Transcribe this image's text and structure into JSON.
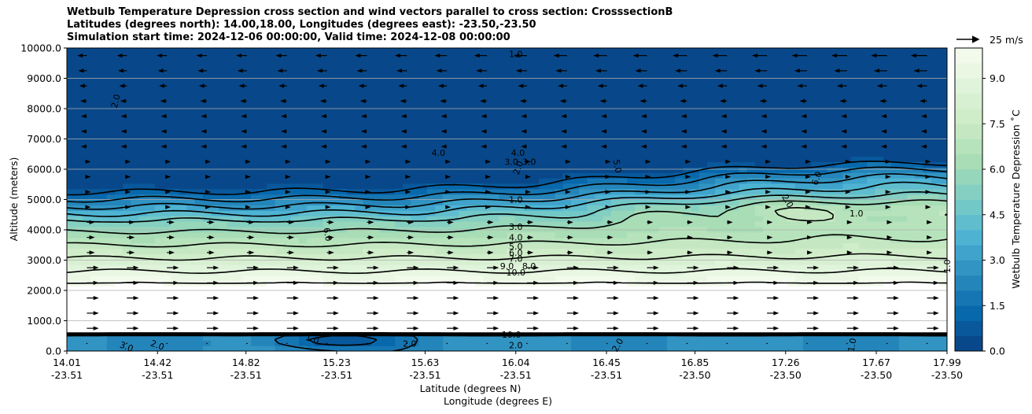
{
  "chart_data": {
    "type": "heatmap",
    "title_lines": [
      "Wetbulb Temperature Depression cross section and wind vectors parallel to cross section: CrosssectionB",
      "Latitudes (degrees north): 14.00,18.00, Longitudes (degrees east): -23.50,-23.50",
      "Simulation start time: 2024-12-06 00:00:00, Valid time: 2024-12-08 00:00:00"
    ],
    "ylabel": "Altitude (meters)",
    "xlabel_lat": "Latitude (degrees N)",
    "xlabel_lon": "Longitude (degrees E)",
    "ylim": [
      0,
      10000
    ],
    "yticks": [
      "0.0",
      "1000.0",
      "2000.0",
      "3000.0",
      "4000.0",
      "5000.0",
      "6000.0",
      "7000.0",
      "8000.0",
      "9000.0",
      "10000.0"
    ],
    "ytick_values": [
      0,
      1000,
      2000,
      3000,
      4000,
      5000,
      6000,
      7000,
      8000,
      9000,
      10000
    ],
    "xlim": [
      14.01,
      17.99
    ],
    "xtick_positions": [
      14.01,
      14.42,
      14.82,
      15.23,
      15.63,
      16.04,
      16.45,
      16.85,
      17.26,
      17.67,
      17.99
    ],
    "xticks_lat": [
      "14.01",
      "14.42",
      "14.82",
      "15.23",
      "15.63",
      "16.04",
      "16.45",
      "16.85",
      "17.26",
      "17.67",
      "17.99"
    ],
    "xticks_lon": [
      "-23.51",
      "-23.51",
      "-23.51",
      "-23.51",
      "-23.51",
      "-23.51",
      "-23.51",
      "-23.50",
      "-23.50",
      "-23.50",
      "-23.50"
    ],
    "grid": "horizontal",
    "colorbar": {
      "label": "Wetbulb Temperature Depression ˚C",
      "range": [
        0,
        10
      ],
      "ticks": [
        "0.0",
        "1.5",
        "3.0",
        "4.5",
        "6.0",
        "7.5",
        "9.0"
      ],
      "tick_values": [
        0,
        1.5,
        3,
        4.5,
        6,
        7.5,
        9
      ],
      "colormap": "GnBu_r",
      "colors": [
        "#084081",
        "#0868ac",
        "#2b8cbe",
        "#4eb3d3",
        "#7bccc4",
        "#a8ddb5",
        "#ccebc5",
        "#e0f3db",
        "#f7fcf0"
      ]
    },
    "wind_reference": {
      "label": "25 m/s",
      "speed": 25
    },
    "contour_labels": [
      {
        "text": "1.0",
        "x": 16.04,
        "y": 9800
      },
      {
        "text": "2.0",
        "x": 14.23,
        "y": 8250,
        "rotate": -75
      },
      {
        "text": "4.0",
        "x": 15.69,
        "y": 6550
      },
      {
        "text": "4.0",
        "x": 16.05,
        "y": 6550
      },
      {
        "text": "3.0",
        "x": 16.02,
        "y": 6250
      },
      {
        "text": "3.0",
        "x": 16.1,
        "y": 6250
      },
      {
        "text": "2.0",
        "x": 16.05,
        "y": 6050,
        "rotate": -70
      },
      {
        "text": "5.0",
        "x": 16.5,
        "y": 6100,
        "rotate": 80
      },
      {
        "text": "6.0",
        "x": 17.4,
        "y": 5700,
        "rotate": -70
      },
      {
        "text": "2.0",
        "x": 17.27,
        "y": 4950,
        "rotate": 60
      },
      {
        "text": "1.0",
        "x": 17.58,
        "y": 4550
      },
      {
        "text": "1.0",
        "x": 16.04,
        "y": 5000
      },
      {
        "text": "6.0",
        "x": 15.19,
        "y": 3850,
        "rotate": 80
      },
      {
        "text": "3.0",
        "x": 16.04,
        "y": 4100
      },
      {
        "text": "4.0",
        "x": 16.04,
        "y": 3750
      },
      {
        "text": "5.0",
        "x": 16.04,
        "y": 3450
      },
      {
        "text": "6.0",
        "x": 16.04,
        "y": 3250
      },
      {
        "text": "7.0",
        "x": 16.04,
        "y": 3050
      },
      {
        "text": "9.0",
        "x": 16.0,
        "y": 2800
      },
      {
        "text": "8.0",
        "x": 16.1,
        "y": 2800
      },
      {
        "text": "10.0",
        "x": 16.04,
        "y": 2600
      },
      {
        "text": "10.0",
        "x": 16.02,
        "y": 550
      },
      {
        "text": "2.0",
        "x": 16.04,
        "y": 200
      },
      {
        "text": "3.0",
        "x": 14.28,
        "y": 150,
        "rotate": 20
      },
      {
        "text": "2.0",
        "x": 14.42,
        "y": 200,
        "rotate": 20
      },
      {
        "text": "1.0",
        "x": 15.12,
        "y": 400,
        "rotate": 20
      },
      {
        "text": "2.0",
        "x": 15.56,
        "y": 250
      },
      {
        "text": "2.0",
        "x": 16.5,
        "y": 200,
        "rotate": -60
      },
      {
        "text": "1.0",
        "x": 17.56,
        "y": 200,
        "rotate": -80
      },
      {
        "text": "1.0",
        "x": 17.99,
        "y": 2800,
        "rotate": -90
      }
    ]
  }
}
